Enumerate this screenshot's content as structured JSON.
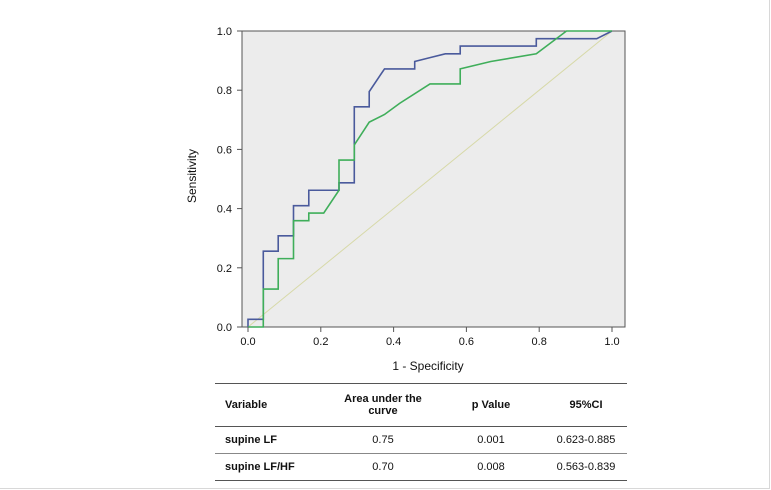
{
  "chart_data": {
    "type": "line",
    "subtype": "roc",
    "xlabel": "1 - Specificity",
    "ylabel": "Sensitivity",
    "xlim": [
      0,
      1
    ],
    "ylim": [
      0,
      1
    ],
    "xticks": [
      "0.0",
      "0.2",
      "0.4",
      "0.6",
      "0.8",
      "1.0"
    ],
    "yticks": [
      "0.0",
      "0.2",
      "0.4",
      "0.6",
      "0.8",
      "1.0"
    ],
    "series": [
      {
        "name": "supine LF",
        "color": "#4a5a9c",
        "points": [
          [
            0,
            0
          ],
          [
            0,
            0.026
          ],
          [
            0.042,
            0.026
          ],
          [
            0.042,
            0.256
          ],
          [
            0.083,
            0.256
          ],
          [
            0.083,
            0.308
          ],
          [
            0.125,
            0.308
          ],
          [
            0.125,
            0.41
          ],
          [
            0.167,
            0.41
          ],
          [
            0.167,
            0.462
          ],
          [
            0.25,
            0.462
          ],
          [
            0.25,
            0.487
          ],
          [
            0.292,
            0.487
          ],
          [
            0.292,
            0.744
          ],
          [
            0.333,
            0.744
          ],
          [
            0.333,
            0.795
          ],
          [
            0.375,
            0.872
          ],
          [
            0.458,
            0.872
          ],
          [
            0.458,
            0.897
          ],
          [
            0.5,
            0.91
          ],
          [
            0.542,
            0.923
          ],
          [
            0.583,
            0.923
          ],
          [
            0.583,
            0.949
          ],
          [
            0.792,
            0.949
          ],
          [
            0.792,
            0.974
          ],
          [
            0.958,
            0.974
          ],
          [
            1,
            1
          ]
        ]
      },
      {
        "name": "supine LF/HF",
        "color": "#3fae5a",
        "points": [
          [
            0,
            0
          ],
          [
            0.042,
            0
          ],
          [
            0.042,
            0.128
          ],
          [
            0.083,
            0.128
          ],
          [
            0.083,
            0.231
          ],
          [
            0.125,
            0.231
          ],
          [
            0.125,
            0.359
          ],
          [
            0.167,
            0.359
          ],
          [
            0.167,
            0.385
          ],
          [
            0.208,
            0.385
          ],
          [
            0.25,
            0.462
          ],
          [
            0.25,
            0.564
          ],
          [
            0.292,
            0.564
          ],
          [
            0.292,
            0.615
          ],
          [
            0.333,
            0.692
          ],
          [
            0.375,
            0.718
          ],
          [
            0.417,
            0.756
          ],
          [
            0.5,
            0.821
          ],
          [
            0.583,
            0.821
          ],
          [
            0.583,
            0.872
          ],
          [
            0.667,
            0.897
          ],
          [
            0.792,
            0.923
          ],
          [
            0.875,
            1
          ],
          [
            1,
            1
          ]
        ]
      },
      {
        "name": "reference",
        "color": "#d7d9a8",
        "points": [
          [
            0,
            0
          ],
          [
            1,
            1
          ]
        ]
      }
    ]
  },
  "table": {
    "headers": {
      "variable": "Variable",
      "auc": "Area under the curve",
      "p": "p Value",
      "ci": "95%CI"
    },
    "rows": [
      {
        "variable": "supine LF",
        "auc": "0.75",
        "p": "0.001",
        "ci": "0.623-0.885"
      },
      {
        "variable": "supine LF/HF",
        "auc": "0.70",
        "p": "0.008",
        "ci": "0.563-0.839"
      }
    ]
  }
}
